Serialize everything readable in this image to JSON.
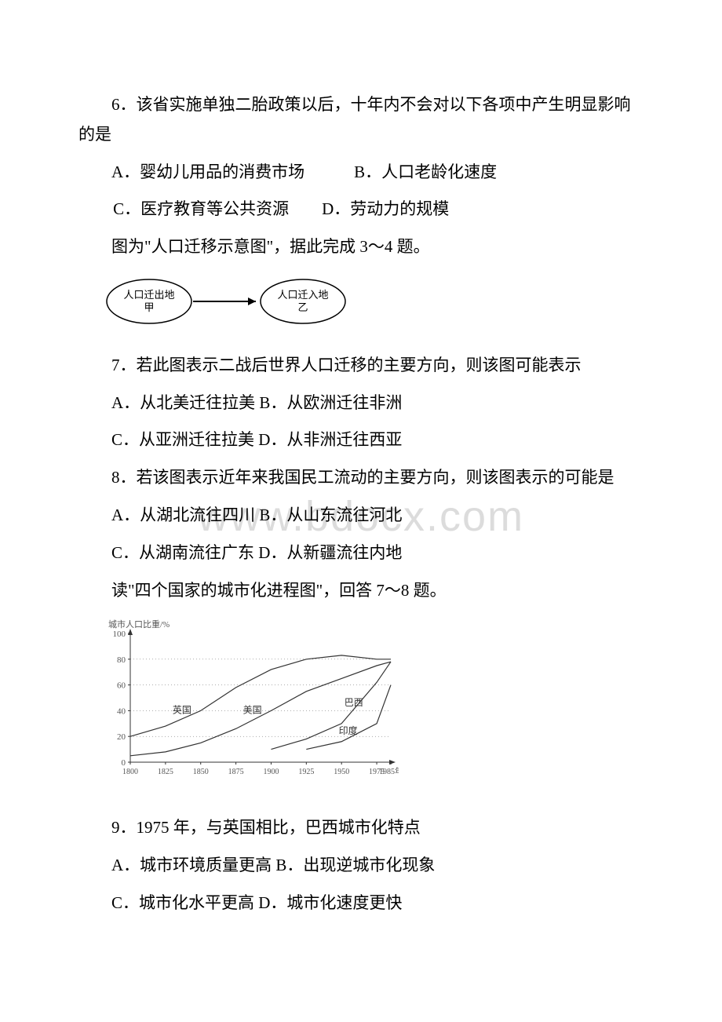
{
  "watermark": "www.bdocx.com",
  "q6": {
    "stem": "6．该省实施单独二胎政策以后，十年内不会对以下各项中产生明显影响的是",
    "optA": "A．婴幼儿用品的消费市场",
    "optB": "B．人口老龄化速度",
    "optC": "C．医疗教育等公共资源",
    "optD": "D．劳动力的规模"
  },
  "lead34": "图为\"人口迁移示意图\"，据此完成 3～4 题。",
  "migration_diagram": {
    "node1_line1": "人口迁出地",
    "node1_line2": "甲",
    "node2_line1": "人口迁入地",
    "node2_line2": "乙",
    "stroke": "#000000",
    "fill": "#ffffff",
    "fontsize": 13
  },
  "q7": {
    "stem": "7．若此图表示二战后世界人口迁移的主要方向，则该图可能表示",
    "optA": "A．从北美迁往拉美",
    "optB": "B．从欧洲迁往非洲",
    "optC": "C．从亚洲迁往拉美",
    "optD": "D．从非洲迁往西亚"
  },
  "q8": {
    "stem": "8．若该图表示近年来我国民工流动的主要方向，则该图表示的可能是",
    "optA": "A．从湖北流往四川",
    "optB": "B．从山东流往河北",
    "optC": "C．从湖南流往广东",
    "optD": "D．从新疆流往内地"
  },
  "lead78": "读\"四个国家的城市化进程图\"，回答 7～8 题。",
  "chart": {
    "ylabel": "城市人口比重/%",
    "y_ticks": [
      0,
      20,
      40,
      60,
      80,
      100
    ],
    "x_ticks": [
      1800,
      1825,
      1850,
      1875,
      1900,
      1925,
      1950,
      1975,
      1985
    ],
    "x_suffix": "年",
    "axis_color": "#333333",
    "grid_color": "#333333",
    "line_color": "#333333",
    "line_width": 1.2,
    "series": {
      "uk": {
        "label": "英国",
        "points": [
          [
            1800,
            20
          ],
          [
            1825,
            28
          ],
          [
            1850,
            40
          ],
          [
            1875,
            58
          ],
          [
            1900,
            72
          ],
          [
            1925,
            80
          ],
          [
            1950,
            83
          ],
          [
            1975,
            80
          ],
          [
            1985,
            80
          ]
        ]
      },
      "us": {
        "label": "美国",
        "points": [
          [
            1800,
            5
          ],
          [
            1825,
            8
          ],
          [
            1850,
            15
          ],
          [
            1875,
            26
          ],
          [
            1900,
            40
          ],
          [
            1925,
            55
          ],
          [
            1950,
            65
          ],
          [
            1975,
            75
          ],
          [
            1985,
            78
          ]
        ]
      },
      "brazil": {
        "label": "巴西",
        "points": [
          [
            1900,
            10
          ],
          [
            1925,
            18
          ],
          [
            1950,
            30
          ],
          [
            1975,
            62
          ],
          [
            1985,
            78
          ]
        ]
      },
      "india": {
        "label": "印度",
        "points": [
          [
            1925,
            10
          ],
          [
            1950,
            16
          ],
          [
            1975,
            30
          ],
          [
            1985,
            60
          ]
        ]
      }
    }
  },
  "q9": {
    "stem": "9．1975 年，与英国相比，巴西城市化特点",
    "optA": "A．城市环境质量更高",
    "optB": "B．出现逆城市化现象",
    "optC": "C．城市化水平更高",
    "optD": "D．城市化速度更快"
  }
}
